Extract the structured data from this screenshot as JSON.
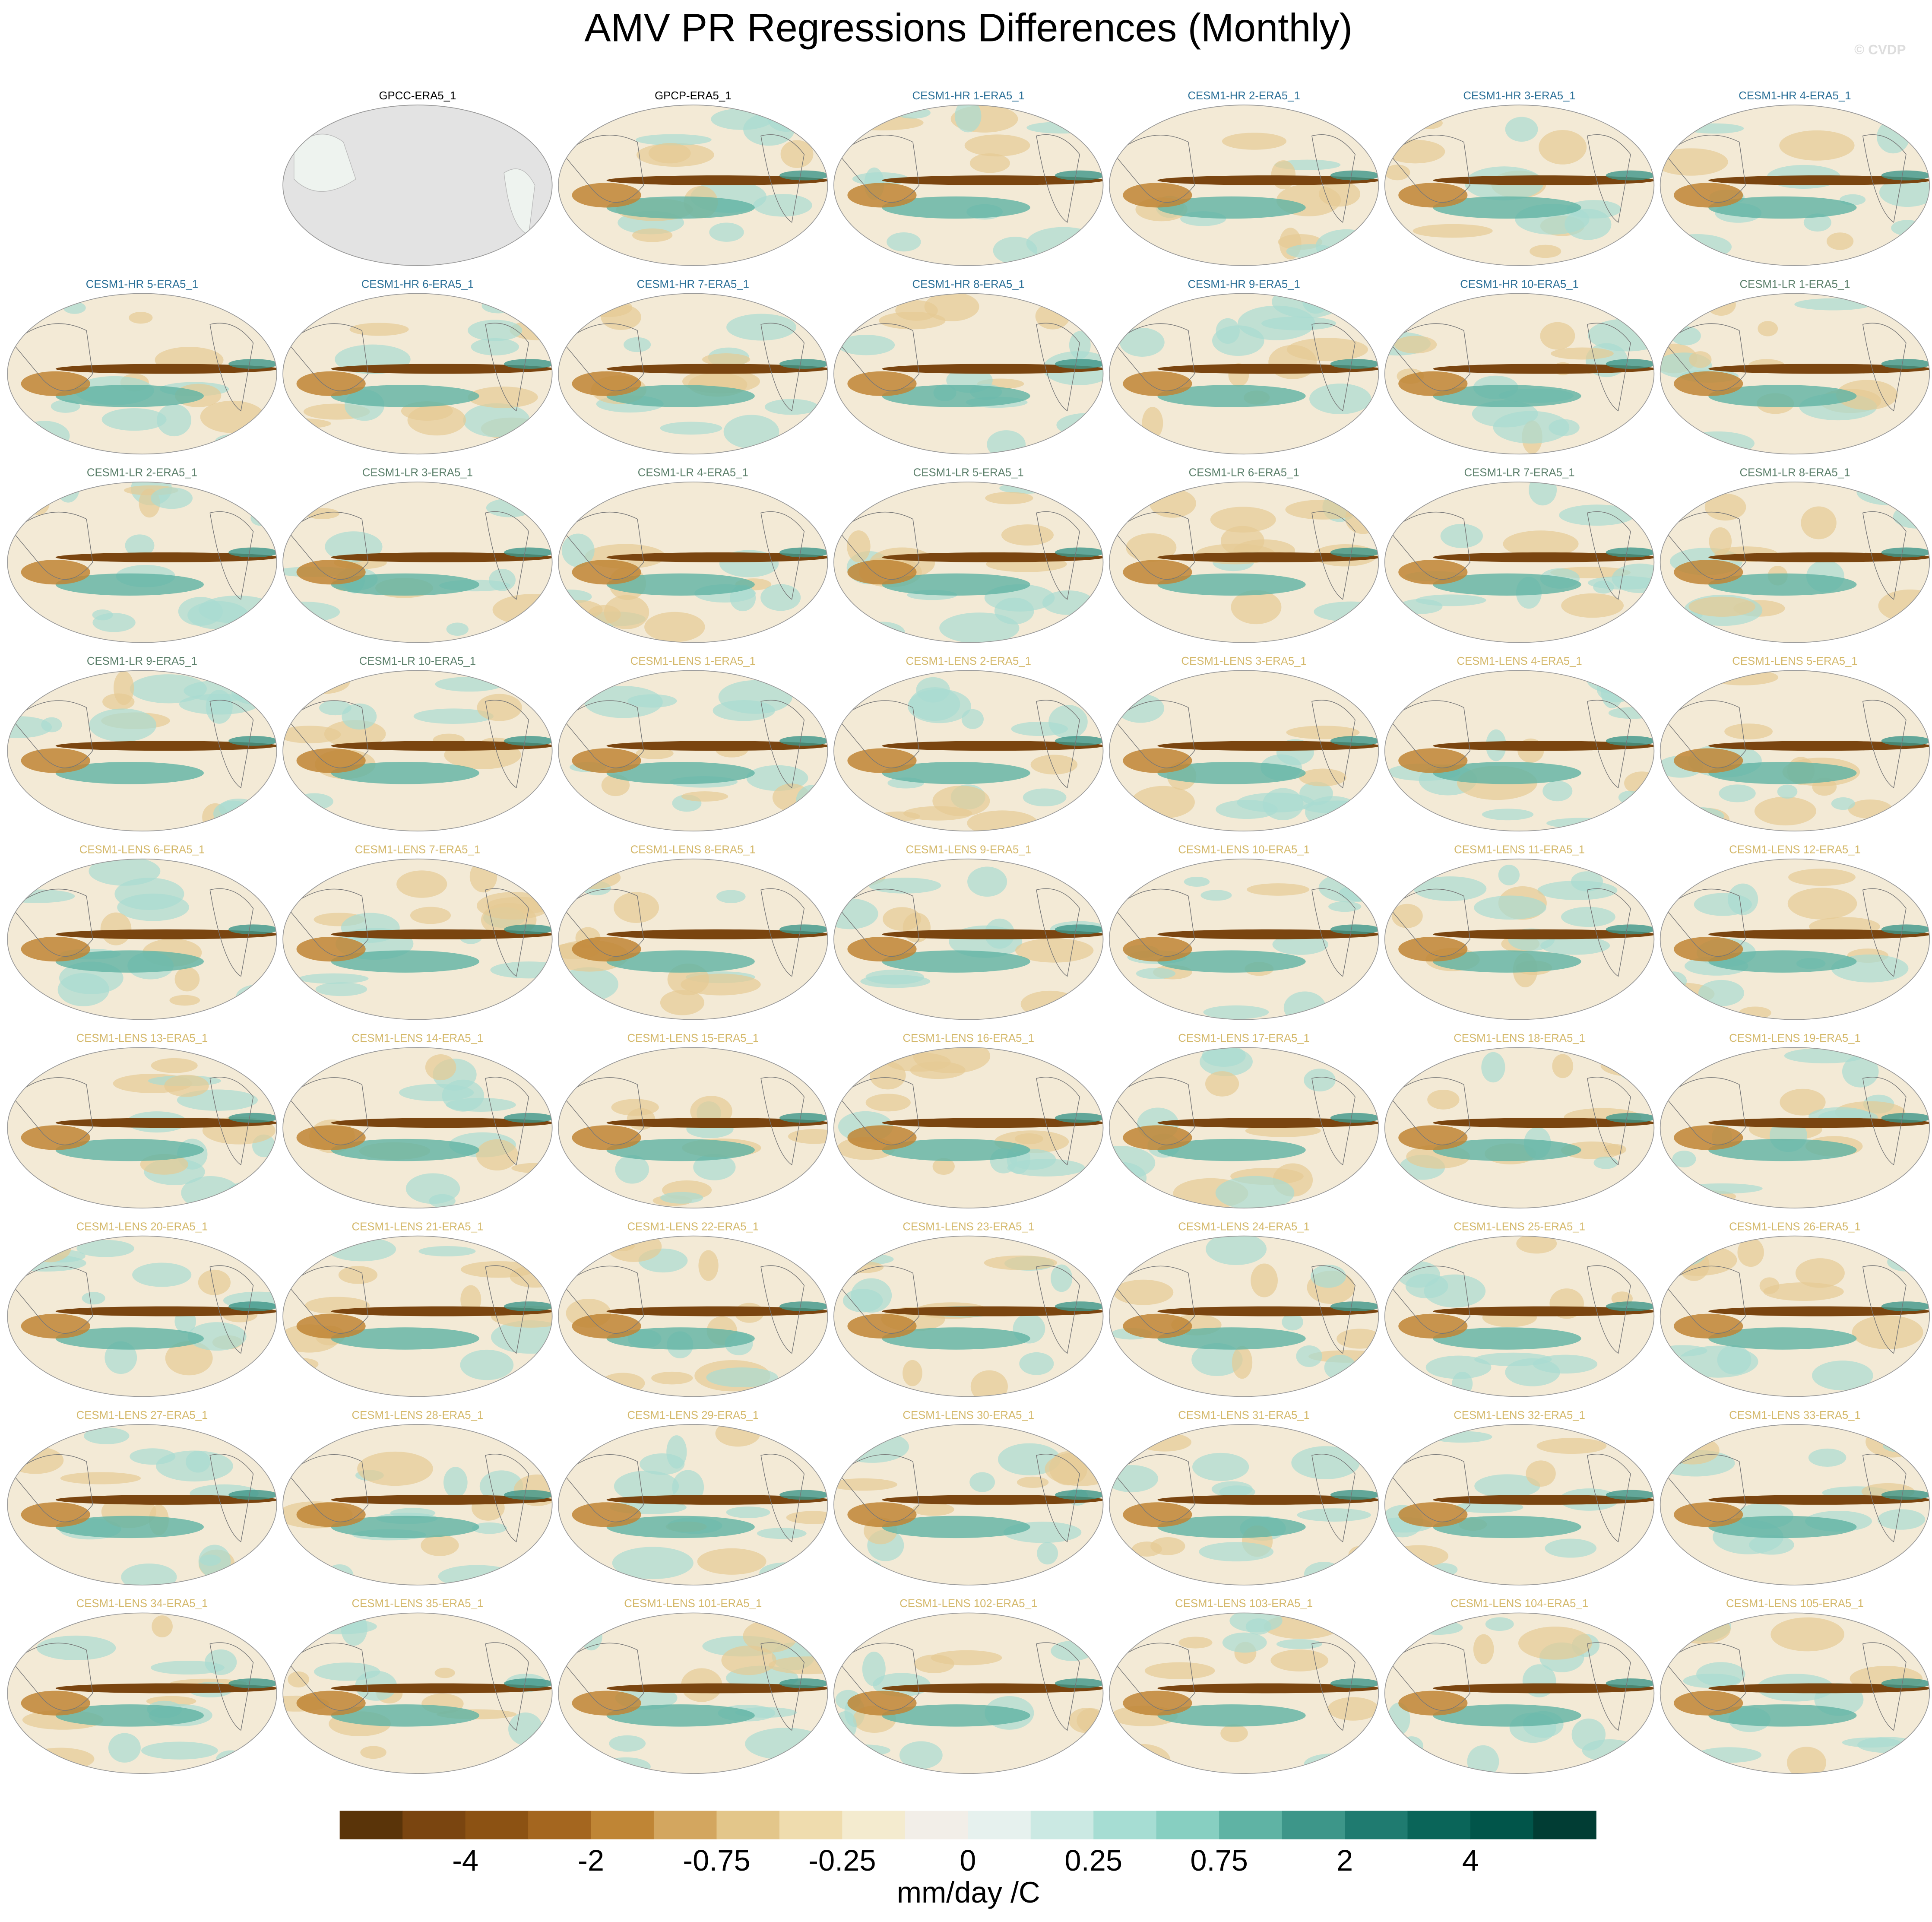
{
  "header": {
    "title": "AMV PR Regressions Differences (Monthly)",
    "watermark": "© CVDP"
  },
  "groups": [
    {
      "color": "#000000",
      "panels": [
        "GPCC-ERA5_1",
        "GPCP-ERA5_1"
      ]
    },
    {
      "color": "#2a6f97",
      "panels": [
        "CESM1-HR 1-ERA5_1",
        "CESM1-HR 2-ERA5_1",
        "CESM1-HR 3-ERA5_1",
        "CESM1-HR 4-ERA5_1",
        "CESM1-HR 5-ERA5_1",
        "CESM1-HR 6-ERA5_1",
        "CESM1-HR 7-ERA5_1",
        "CESM1-HR 8-ERA5_1",
        "CESM1-HR 9-ERA5_1",
        "CESM1-HR 10-ERA5_1"
      ]
    },
    {
      "color": "#5b7f6a",
      "panels": [
        "CESM1-LR 1-ERA5_1",
        "CESM1-LR 2-ERA5_1",
        "CESM1-LR 3-ERA5_1",
        "CESM1-LR 4-ERA5_1",
        "CESM1-LR 5-ERA5_1",
        "CESM1-LR 6-ERA5_1",
        "CESM1-LR 7-ERA5_1",
        "CESM1-LR 8-ERA5_1",
        "CESM1-LR 9-ERA5_1",
        "CESM1-LR 10-ERA5_1"
      ]
    },
    {
      "color": "#d4b86a",
      "panels": [
        "CESM1-LENS 1-ERA5_1",
        "CESM1-LENS 2-ERA5_1",
        "CESM1-LENS 3-ERA5_1",
        "CESM1-LENS 4-ERA5_1",
        "CESM1-LENS 5-ERA5_1",
        "CESM1-LENS 6-ERA5_1",
        "CESM1-LENS 7-ERA5_1",
        "CESM1-LENS 8-ERA5_1",
        "CESM1-LENS 9-ERA5_1",
        "CESM1-LENS 10-ERA5_1",
        "CESM1-LENS 11-ERA5_1",
        "CESM1-LENS 12-ERA5_1",
        "CESM1-LENS 13-ERA5_1",
        "CESM1-LENS 14-ERA5_1",
        "CESM1-LENS 15-ERA5_1",
        "CESM1-LENS 16-ERA5_1",
        "CESM1-LENS 17-ERA5_1",
        "CESM1-LENS 18-ERA5_1",
        "CESM1-LENS 19-ERA5_1",
        "CESM1-LENS 20-ERA5_1",
        "CESM1-LENS 21-ERA5_1",
        "CESM1-LENS 22-ERA5_1",
        "CESM1-LENS 23-ERA5_1",
        "CESM1-LENS 24-ERA5_1",
        "CESM1-LENS 25-ERA5_1",
        "CESM1-LENS 26-ERA5_1",
        "CESM1-LENS 27-ERA5_1",
        "CESM1-LENS 28-ERA5_1",
        "CESM1-LENS 29-ERA5_1",
        "CESM1-LENS 30-ERA5_1",
        "CESM1-LENS 31-ERA5_1",
        "CESM1-LENS 32-ERA5_1",
        "CESM1-LENS 33-ERA5_1",
        "CESM1-LENS 34-ERA5_1",
        "CESM1-LENS 35-ERA5_1",
        "CESM1-LENS 101-ERA5_1",
        "CESM1-LENS 102-ERA5_1",
        "CESM1-LENS 103-ERA5_1",
        "CESM1-LENS 104-ERA5_1",
        "CESM1-LENS 105-ERA5_1"
      ]
    }
  ],
  "colorbar": {
    "colors": [
      "#5a3409",
      "#7a4510",
      "#8c5213",
      "#a4661f",
      "#bf8535",
      "#d3a65f",
      "#e3c68a",
      "#efdcae",
      "#f4ebcf",
      "#f2eee8",
      "#e6f1ee",
      "#cbe9e3",
      "#a6ddd3",
      "#87cfc1",
      "#5fb3a4",
      "#3d9689",
      "#1f7b70",
      "#0a6559",
      "#01554a",
      "#013d34"
    ],
    "ticks": [
      -4,
      -2,
      -0.75,
      -0.25,
      0,
      0.25,
      0.75,
      2,
      4
    ],
    "unit": "mm/day /C"
  }
}
